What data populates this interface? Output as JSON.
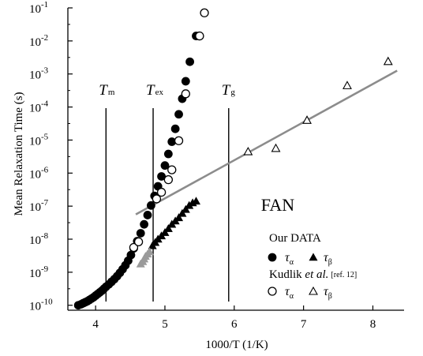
{
  "chart_data": {
    "type": "scatter",
    "title": "",
    "xlabel": "1000/T (1/K)",
    "ylabel": "Mean Relaxation Time (s)",
    "xlim": [
      3.6,
      8.45
    ],
    "ylim": [
      -10.15,
      -1.0
    ],
    "y_scale": "log",
    "x_ticks": [
      4,
      5,
      6,
      7,
      8
    ],
    "x_tick_labels": [
      "4",
      "5",
      "6",
      "7",
      "8"
    ],
    "y_ticks": [
      -10,
      -9,
      -8,
      -7,
      -6,
      -5,
      -4,
      -3,
      -2,
      -1
    ],
    "y_tick_labels": [
      "10",
      "10",
      "10",
      "10",
      "10",
      "10",
      "10",
      "10",
      "10",
      "10"
    ],
    "y_tick_exponents": [
      "-10",
      "-9",
      "-8",
      "-7",
      "-6",
      "-5",
      "-4",
      "-3",
      "-2",
      "-1"
    ],
    "grid": false,
    "system_label": "FAN",
    "vertical_lines": [
      {
        "name": "T",
        "sub": "m",
        "x": 4.15
      },
      {
        "name": "T",
        "sub": "ex",
        "x": 4.83
      },
      {
        "name": "T",
        "sub": "g",
        "x": 5.92
      }
    ],
    "fit_line": {
      "x": [
        4.58,
        8.35
      ],
      "log10_y": [
        -7.25,
        -2.9
      ],
      "color": "#8c8c8c"
    },
    "series": [
      {
        "name": "Our DATA τα",
        "marker": "circle-filled",
        "color": "#000000",
        "x": [
          3.75,
          3.79,
          3.82,
          3.85,
          3.88,
          3.91,
          3.94,
          3.97,
          4.0,
          4.03,
          4.06,
          4.09,
          4.12,
          4.15,
          4.19,
          4.23,
          4.27,
          4.31,
          4.35,
          4.39,
          4.43,
          4.47,
          4.51,
          4.55,
          4.6,
          4.65,
          4.7,
          4.75,
          4.8,
          4.85,
          4.9,
          4.95,
          5.0,
          5.05,
          5.1,
          5.15,
          5.2,
          5.25,
          5.3,
          5.36,
          5.45
        ],
        "log10_y": [
          -10.0,
          -9.97,
          -9.94,
          -9.91,
          -9.88,
          -9.84,
          -9.8,
          -9.76,
          -9.71,
          -9.66,
          -9.61,
          -9.56,
          -9.5,
          -9.44,
          -9.37,
          -9.29,
          -9.21,
          -9.12,
          -9.02,
          -8.91,
          -8.79,
          -8.65,
          -8.48,
          -8.28,
          -8.06,
          -7.82,
          -7.55,
          -7.27,
          -6.98,
          -6.69,
          -6.4,
          -6.1,
          -5.77,
          -5.42,
          -5.05,
          -4.66,
          -4.22,
          -3.75,
          -3.22,
          -2.63,
          -1.85
        ]
      },
      {
        "name": "Our DATA τβ",
        "marker": "triangle-filled",
        "color": "#000000",
        "x": [
          4.82,
          4.86,
          4.9,
          4.95,
          5.0,
          5.05,
          5.1,
          5.15,
          5.2,
          5.25,
          5.3,
          5.35,
          5.4,
          5.45
        ],
        "log10_y": [
          -8.2,
          -8.1,
          -8.0,
          -7.9,
          -7.8,
          -7.68,
          -7.55,
          -7.45,
          -7.35,
          -7.22,
          -7.1,
          -6.98,
          -6.9,
          -6.85
        ]
      },
      {
        "name": "Our DATA τβ (gray)",
        "marker": "triangle-filled",
        "color": "#9a9a9a",
        "x": [
          4.65,
          4.68,
          4.7,
          4.72,
          4.75,
          4.78
        ],
        "log10_y": [
          -8.75,
          -8.68,
          -8.6,
          -8.52,
          -8.45,
          -8.38
        ]
      },
      {
        "name": "Kudlik et al. τα",
        "marker": "circle-open",
        "color": "#000000",
        "x": [
          4.55,
          4.62,
          4.88,
          4.95,
          5.05,
          5.1,
          5.2,
          5.3,
          5.5,
          5.57
        ],
        "log10_y": [
          -8.25,
          -8.08,
          -6.78,
          -6.58,
          -6.2,
          -5.9,
          -5.02,
          -3.6,
          -1.85,
          -1.15
        ]
      },
      {
        "name": "Kudlik et al. τβ",
        "marker": "triangle-open",
        "color": "#000000",
        "x": [
          6.2,
          6.6,
          7.05,
          7.63,
          8.22
        ],
        "log10_y": [
          -5.35,
          -5.25,
          -4.4,
          -3.35,
          -2.62
        ]
      }
    ],
    "legend": {
      "position": "bottom-right",
      "our_data": "Our DATA",
      "kudlik_prefix": "Kudlik ",
      "kudlik_italic": "et al.",
      "kudlik_ref": "[ref. 12]",
      "tau": "τ",
      "sub_alpha": "α",
      "sub_beta": "β"
    }
  }
}
